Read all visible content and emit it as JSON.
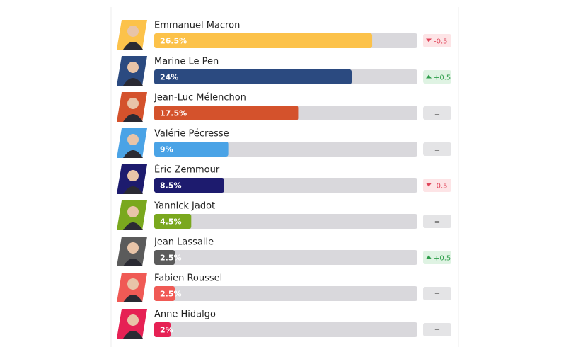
{
  "chart_data": {
    "type": "bar",
    "categories": [
      "Emmanuel Macron",
      "Marine Le Pen",
      "Jean-Luc Mélenchon",
      "Valérie Pécresse",
      "Éric Zemmour",
      "Yannick Jadot",
      "Jean Lassalle",
      "Fabien Roussel",
      "Anne Hidalgo"
    ],
    "values": [
      26.5,
      24,
      17.5,
      9,
      8.5,
      4.5,
      2.5,
      2.5,
      2
    ],
    "value_labels": [
      "26.5%",
      "24%",
      "17.5%",
      "9%",
      "8.5%",
      "4.5%",
      "2.5%",
      "2.5%",
      "2%"
    ],
    "colors": [
      "#fcc24a",
      "#2b4a80",
      "#d4522c",
      "#4aa3e6",
      "#1d1b6e",
      "#7aa81e",
      "#5b5b5b",
      "#f05a55",
      "#e62154"
    ],
    "changes": [
      -0.5,
      0.5,
      0,
      0,
      -0.5,
      0,
      0.5,
      0,
      0
    ],
    "change_labels": [
      "-0.5",
      "+0.5",
      "=",
      "=",
      "-0.5",
      "=",
      "+0.5",
      "=",
      "="
    ],
    "xlim": [
      0,
      32
    ]
  }
}
